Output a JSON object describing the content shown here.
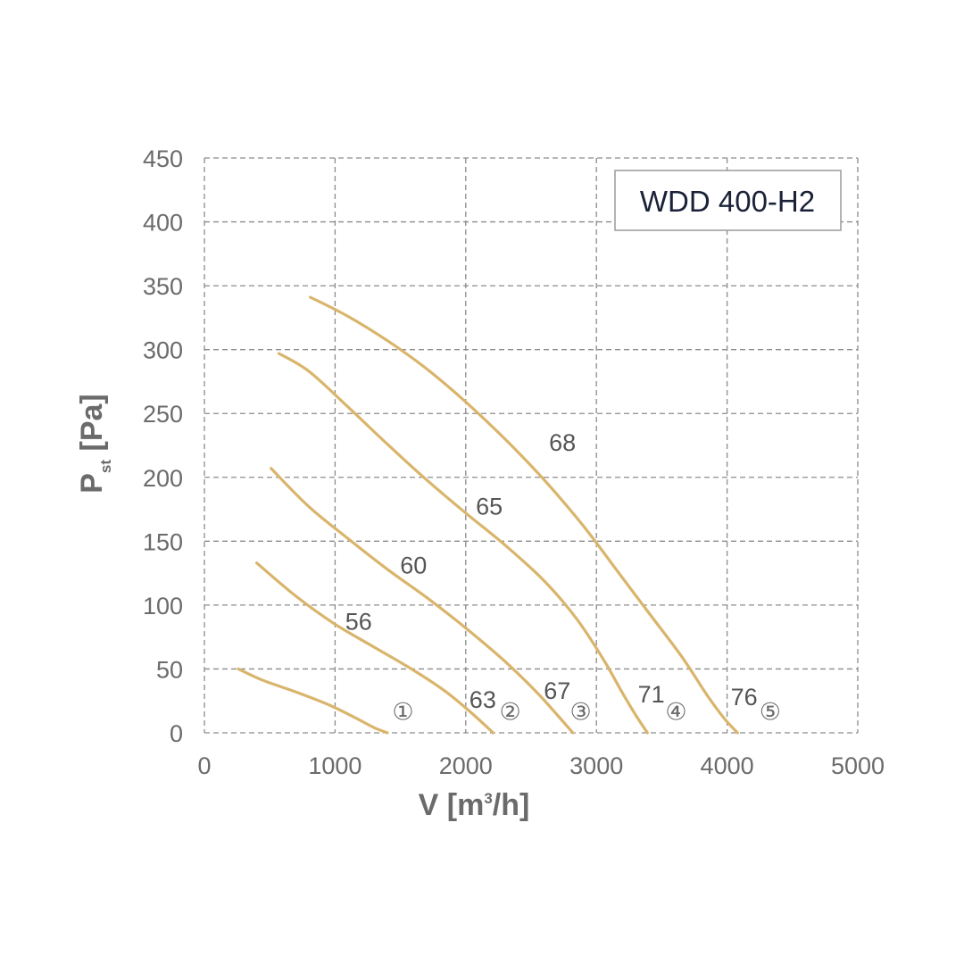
{
  "chart_data": {
    "type": "line",
    "title": "WDD 400-H2",
    "xlabel": {
      "main": "V [m",
      "sup": "3",
      "end": "/h]"
    },
    "ylabel": {
      "main": "P",
      "sub": "st",
      "end": " [Pa]"
    },
    "xlim": [
      0,
      5000
    ],
    "ylim": [
      0,
      450
    ],
    "x_ticks": [
      0,
      1000,
      2000,
      3000,
      4000,
      5000
    ],
    "y_ticks": [
      0,
      50,
      100,
      150,
      200,
      250,
      300,
      350,
      400,
      450
    ],
    "grid": true,
    "line_color": "#d9b56c",
    "series": [
      {
        "number": "①",
        "points": [
          [
            260,
            50
          ],
          [
            450,
            41
          ],
          [
            700,
            32
          ],
          [
            950,
            22
          ],
          [
            1150,
            12
          ],
          [
            1300,
            4
          ],
          [
            1400,
            0
          ]
        ],
        "labels": []
      },
      {
        "number": "②",
        "points": [
          [
            400,
            133
          ],
          [
            700,
            107
          ],
          [
            1000,
            85
          ],
          [
            1300,
            67
          ],
          [
            1600,
            49
          ],
          [
            1850,
            32
          ],
          [
            2050,
            15
          ],
          [
            2210,
            0
          ]
        ],
        "labels": [
          {
            "text": "56",
            "x": 1180,
            "y": 87
          },
          {
            "text": "63",
            "x": 2130,
            "y": 26
          }
        ]
      },
      {
        "number": "③",
        "points": [
          [
            510,
            207
          ],
          [
            800,
            177
          ],
          [
            1100,
            152
          ],
          [
            1400,
            128
          ],
          [
            1700,
            106
          ],
          [
            2000,
            82
          ],
          [
            2300,
            56
          ],
          [
            2550,
            31
          ],
          [
            2700,
            14
          ],
          [
            2820,
            0
          ]
        ],
        "labels": [
          {
            "text": "60",
            "x": 1600,
            "y": 131
          },
          {
            "text": "67",
            "x": 2700,
            "y": 33
          }
        ]
      },
      {
        "number": "④",
        "points": [
          [
            570,
            297
          ],
          [
            800,
            283
          ],
          [
            1100,
            255
          ],
          [
            1400,
            226
          ],
          [
            1700,
            198
          ],
          [
            2000,
            172
          ],
          [
            2300,
            147
          ],
          [
            2600,
            119
          ],
          [
            2850,
            89
          ],
          [
            3050,
            58
          ],
          [
            3200,
            31
          ],
          [
            3300,
            14
          ],
          [
            3390,
            0
          ]
        ],
        "labels": [
          {
            "text": "65",
            "x": 2180,
            "y": 177
          },
          {
            "text": "71",
            "x": 3420,
            "y": 30
          }
        ]
      },
      {
        "number": "⑤",
        "points": [
          [
            810,
            341
          ],
          [
            1100,
            326
          ],
          [
            1400,
            307
          ],
          [
            1700,
            285
          ],
          [
            2000,
            259
          ],
          [
            2300,
            230
          ],
          [
            2600,
            198
          ],
          [
            2900,
            162
          ],
          [
            3150,
            128
          ],
          [
            3400,
            94
          ],
          [
            3650,
            60
          ],
          [
            3850,
            29
          ],
          [
            3980,
            11
          ],
          [
            4080,
            0
          ]
        ],
        "labels": [
          {
            "text": "68",
            "x": 2740,
            "y": 227
          },
          {
            "text": "76",
            "x": 4130,
            "y": 28
          }
        ]
      }
    ],
    "number_markers": [
      {
        "text": "①",
        "x": 1520,
        "y": 17
      },
      {
        "text": "②",
        "x": 2340,
        "y": 17
      },
      {
        "text": "③",
        "x": 2880,
        "y": 17
      },
      {
        "text": "④",
        "x": 3610,
        "y": 17
      },
      {
        "text": "⑤",
        "x": 4330,
        "y": 17
      }
    ]
  }
}
